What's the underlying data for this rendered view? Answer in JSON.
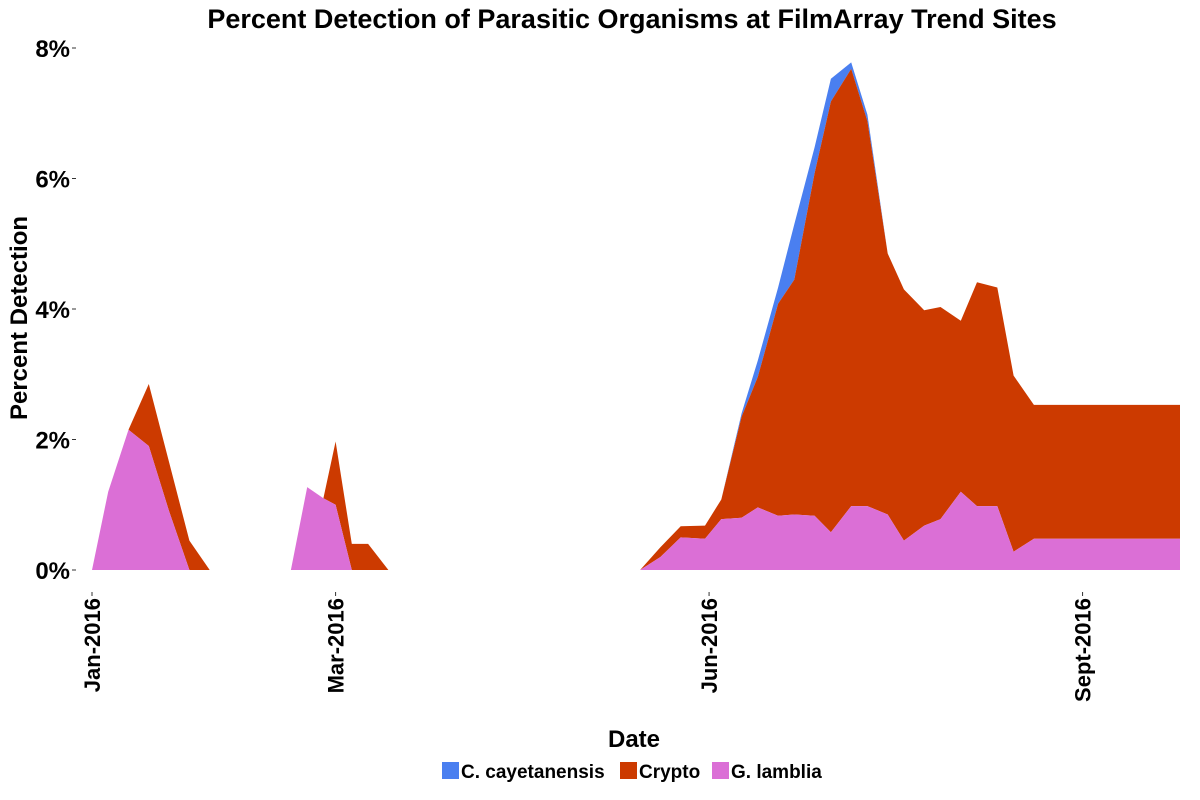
{
  "chart_data": {
    "type": "area",
    "stacked": true,
    "title": "Percent Detection of Parasitic Organisms at FilmArray Trend Sites",
    "xlabel": "Date",
    "ylabel": "Percent Detection",
    "x_ticks": [
      {
        "label": "Jan-2016",
        "date": "2016-01-01"
      },
      {
        "label": "Mar-2016",
        "date": "2016-03-01"
      },
      {
        "label": "Jun-2016",
        "date": "2016-06-01"
      },
      {
        "label": "Sept-2016",
        "date": "2016-09-01"
      }
    ],
    "y_ticks": [
      "0%",
      "2%",
      "4%",
      "6%",
      "8%"
    ],
    "ylim": [
      0,
      8
    ],
    "xlim": [
      "2016-01-01",
      "2016-09-25"
    ],
    "grid": false,
    "legend_position": "bottom",
    "colors": {
      "C. cayetanensis": "#4a7ff0",
      "Crypto": "#cc3a00",
      "G. lamblia": "#db6fd6"
    },
    "dates": [
      "2016-01-01",
      "2016-01-05",
      "2016-01-10",
      "2016-01-15",
      "2016-01-20",
      "2016-01-25",
      "2016-01-30",
      "2016-02-19",
      "2016-02-23",
      "2016-02-27",
      "2016-03-01",
      "2016-03-05",
      "2016-03-09",
      "2016-03-14",
      "2016-05-10",
      "2016-05-15",
      "2016-05-20",
      "2016-05-25",
      "2016-05-31",
      "2016-06-04",
      "2016-06-09",
      "2016-06-13",
      "2016-06-18",
      "2016-06-22",
      "2016-06-27",
      "2016-07-01",
      "2016-07-06",
      "2016-07-10",
      "2016-07-15",
      "2016-07-19",
      "2016-07-24",
      "2016-07-28",
      "2016-08-02",
      "2016-08-06",
      "2016-08-11",
      "2016-08-15",
      "2016-08-20",
      "2016-08-24",
      "2016-08-29",
      "2016-09-02",
      "2016-09-07",
      "2016-09-11",
      "2016-09-16",
      "2016-09-20",
      "2016-09-25"
    ],
    "series": [
      {
        "name": "G. lamblia",
        "values": [
          0,
          1.2,
          2.15,
          1.9,
          0.9,
          0,
          0,
          0,
          1.27,
          1.1,
          1.0,
          0,
          0,
          0,
          0,
          0,
          0.2,
          0.5,
          0.48,
          0.78,
          0.8,
          0.96,
          0.83,
          0.85,
          0.83,
          0.58,
          0.98,
          0.98,
          0.85,
          0.45,
          0.68,
          0.78,
          1.2,
          0.98,
          0.98,
          0.28,
          0.48,
          0.48,
          0.48,
          0.48,
          0.48,
          0.48,
          0.48,
          0.48,
          0.48
        ]
      },
      {
        "name": "Crypto",
        "values": [
          0,
          0,
          0,
          0.95,
          0.75,
          0.45,
          0,
          0,
          0,
          0,
          0.97,
          0.4,
          0.4,
          0,
          0,
          0,
          0.15,
          0.17,
          0.2,
          0.3,
          1.55,
          2.0,
          3.25,
          3.6,
          5.25,
          6.6,
          6.7,
          5.9,
          4.0,
          3.85,
          3.3,
          3.25,
          2.62,
          3.43,
          3.35,
          2.7,
          2.05,
          2.05,
          2.05,
          2.05,
          2.05,
          2.05,
          2.05,
          2.05,
          2.05
        ]
      },
      {
        "name": "C. cayetanensis",
        "values": [
          0,
          0,
          0,
          0,
          0,
          0,
          0,
          0,
          0,
          0,
          0,
          0,
          0,
          0,
          0,
          0,
          0,
          0,
          0,
          0,
          0.05,
          0.25,
          0.25,
          0.85,
          0.4,
          0.35,
          0.1,
          0.1,
          0,
          0,
          0,
          0,
          0,
          0,
          0,
          0,
          0,
          0,
          0,
          0,
          0,
          0,
          0,
          0,
          0
        ]
      }
    ]
  }
}
